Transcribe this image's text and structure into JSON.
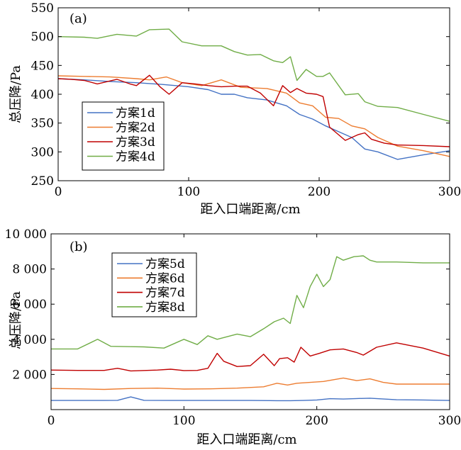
{
  "chart_data": [
    {
      "type": "line",
      "panel_label": "(a)",
      "xlabel": "距入口端距离/cm",
      "ylabel": "总压降/Pa",
      "xlim": [
        0,
        300
      ],
      "ylim": [
        250,
        550
      ],
      "xticks": [
        0,
        100,
        200,
        300
      ],
      "xtick_labels": [
        "0",
        "100",
        "200",
        "300"
      ],
      "yticks": [
        250,
        300,
        350,
        400,
        450,
        500,
        550
      ],
      "ytick_labels": [
        "250",
        "300",
        "350",
        "400",
        "450",
        "500",
        "550"
      ],
      "grid": false,
      "legend_position": "lower-left",
      "series": [
        {
          "name": "方案1d",
          "color": "#4472c4",
          "x": [
            0,
            20,
            40,
            60,
            80,
            100,
            115,
            125,
            135,
            145,
            160,
            175,
            185,
            195,
            205,
            215,
            225,
            235,
            245,
            260,
            280,
            300
          ],
          "y": [
            427,
            425,
            422,
            420,
            417,
            413,
            408,
            400,
            400,
            394,
            390,
            380,
            365,
            357,
            345,
            335,
            325,
            305,
            300,
            287,
            295,
            302
          ]
        },
        {
          "name": "方案2d",
          "color": "#ed7d31",
          "x": [
            0,
            20,
            40,
            60,
            70,
            83,
            95,
            110,
            125,
            140,
            160,
            175,
            185,
            195,
            205,
            215,
            225,
            235,
            245,
            260,
            280,
            300
          ],
          "y": [
            432,
            431,
            430,
            427,
            425,
            430,
            420,
            415,
            425,
            412,
            410,
            402,
            385,
            380,
            360,
            358,
            345,
            340,
            325,
            310,
            302,
            292
          ]
        },
        {
          "name": "方案3d",
          "color": "#c00000",
          "x": [
            0,
            10,
            20,
            30,
            45,
            55,
            60,
            70,
            78,
            85,
            95,
            105,
            115,
            125,
            135,
            145,
            155,
            165,
            172,
            178,
            183,
            190,
            198,
            203,
            208,
            220,
            230,
            235,
            240,
            250,
            260,
            280,
            300
          ],
          "y": [
            427,
            426,
            424,
            418,
            426,
            418,
            415,
            433,
            413,
            400,
            420,
            418,
            415,
            413,
            414,
            414,
            402,
            380,
            415,
            403,
            410,
            402,
            400,
            396,
            343,
            320,
            330,
            333,
            322,
            315,
            312,
            311,
            309
          ]
        },
        {
          "name": "方案4d",
          "color": "#70ad47",
          "x": [
            0,
            20,
            30,
            45,
            60,
            70,
            85,
            95,
            110,
            125,
            135,
            145,
            155,
            165,
            172,
            178,
            183,
            190,
            198,
            203,
            208,
            220,
            230,
            235,
            245,
            260,
            280,
            300
          ],
          "y": [
            500,
            499,
            497,
            504,
            501,
            512,
            513,
            491,
            484,
            484,
            474,
            468,
            469,
            458,
            455,
            465,
            424,
            443,
            431,
            431,
            437,
            399,
            401,
            387,
            379,
            377,
            365,
            353
          ]
        }
      ]
    },
    {
      "type": "line",
      "panel_label": "(b)",
      "xlabel": "距入口端距离/cm",
      "ylabel": "总压降/Pa",
      "xlim": [
        0,
        300
      ],
      "ylim": [
        0,
        10000
      ],
      "xticks": [
        0,
        100,
        200,
        300
      ],
      "xtick_labels": [
        "0",
        "100",
        "200",
        "300"
      ],
      "yticks": [
        2000,
        4000,
        6000,
        8000,
        10000
      ],
      "ytick_labels": [
        "2 000",
        "4 000",
        "6 000",
        "8 000",
        "10 000"
      ],
      "grid": false,
      "legend_position": "upper-left",
      "series": [
        {
          "name": "方案5d",
          "color": "#4472c4",
          "x": [
            0,
            20,
            40,
            50,
            60,
            70,
            90,
            110,
            130,
            150,
            170,
            180,
            190,
            200,
            210,
            220,
            230,
            240,
            260,
            280,
            300
          ],
          "y": [
            520,
            520,
            520,
            530,
            720,
            530,
            520,
            520,
            520,
            520,
            510,
            510,
            520,
            550,
            620,
            600,
            630,
            650,
            560,
            550,
            520
          ]
        },
        {
          "name": "方案6d",
          "color": "#ed7d31",
          "x": [
            0,
            20,
            40,
            60,
            80,
            100,
            120,
            140,
            160,
            170,
            178,
            185,
            195,
            205,
            220,
            230,
            240,
            250,
            260,
            280,
            300
          ],
          "y": [
            1200,
            1180,
            1150,
            1200,
            1220,
            1170,
            1180,
            1220,
            1300,
            1500,
            1400,
            1500,
            1550,
            1600,
            1800,
            1650,
            1750,
            1550,
            1450,
            1450,
            1450
          ]
        },
        {
          "name": "方案7d",
          "color": "#c00000",
          "x": [
            0,
            20,
            40,
            50,
            60,
            80,
            90,
            100,
            110,
            118,
            125,
            130,
            140,
            150,
            160,
            168,
            172,
            178,
            183,
            188,
            195,
            202,
            210,
            220,
            230,
            235,
            245,
            260,
            280,
            300
          ],
          "y": [
            2250,
            2230,
            2230,
            2350,
            2200,
            2250,
            2300,
            2220,
            2230,
            2350,
            3200,
            2750,
            2450,
            2500,
            3150,
            2500,
            2900,
            2950,
            2700,
            3550,
            3050,
            3200,
            3400,
            3450,
            3250,
            3100,
            3550,
            3800,
            3500,
            3050
          ]
        },
        {
          "name": "方案8d",
          "color": "#70ad47",
          "x": [
            0,
            20,
            35,
            45,
            60,
            70,
            85,
            100,
            110,
            118,
            125,
            140,
            150,
            160,
            168,
            175,
            180,
            185,
            190,
            195,
            200,
            205,
            210,
            215,
            220,
            228,
            235,
            240,
            245,
            260,
            280,
            300
          ],
          "y": [
            3450,
            3450,
            4000,
            3600,
            3580,
            3570,
            3500,
            4000,
            3700,
            4200,
            4000,
            4300,
            4150,
            4600,
            5000,
            5200,
            4900,
            6500,
            5800,
            7000,
            7700,
            7000,
            7400,
            8700,
            8500,
            8700,
            8750,
            8500,
            8400,
            8400,
            8350,
            8350
          ]
        }
      ]
    }
  ]
}
